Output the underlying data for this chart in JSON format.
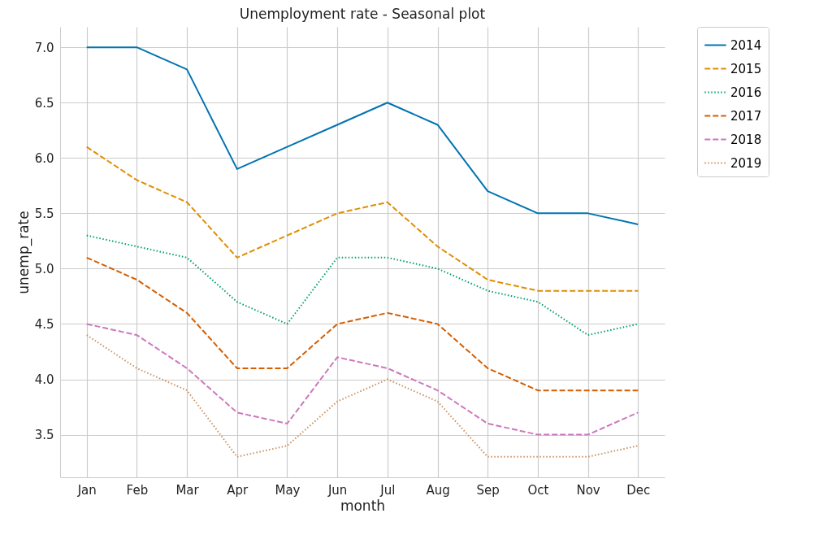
{
  "chart_data": {
    "type": "line",
    "title": "Unemployment rate - Seasonal plot",
    "xlabel": "month",
    "ylabel": "unemp_rate",
    "categories": [
      "Jan",
      "Feb",
      "Mar",
      "Apr",
      "May",
      "Jun",
      "Jul",
      "Aug",
      "Sep",
      "Oct",
      "Nov",
      "Dec"
    ],
    "series": [
      {
        "name": "2014",
        "color": "#0173b2",
        "line_style": "solid",
        "values": [
          7.0,
          7.0,
          6.8,
          5.9,
          6.1,
          6.3,
          6.5,
          6.3,
          5.7,
          5.5,
          5.5,
          5.4
        ]
      },
      {
        "name": "2015",
        "color": "#de8f05",
        "line_style": "dashed",
        "values": [
          6.1,
          5.8,
          5.6,
          5.1,
          5.3,
          5.5,
          5.6,
          5.2,
          4.9,
          4.8,
          4.8,
          4.8
        ]
      },
      {
        "name": "2016",
        "color": "#029e73",
        "line_style": "dotted",
        "values": [
          5.3,
          5.2,
          5.1,
          4.7,
          4.5,
          5.1,
          5.1,
          5.0,
          4.8,
          4.7,
          4.4,
          4.5
        ]
      },
      {
        "name": "2017",
        "color": "#d55e00",
        "line_style": "dashed",
        "values": [
          5.1,
          4.9,
          4.6,
          4.1,
          4.1,
          4.5,
          4.6,
          4.5,
          4.1,
          3.9,
          3.9,
          3.9
        ]
      },
      {
        "name": "2018",
        "color": "#cc78bc",
        "line_style": "dashed",
        "values": [
          4.5,
          4.4,
          4.1,
          3.7,
          3.6,
          4.2,
          4.1,
          3.9,
          3.6,
          3.5,
          3.5,
          3.7
        ]
      },
      {
        "name": "2019",
        "color": "#ca9161",
        "line_style": "dotted",
        "values": [
          4.4,
          4.1,
          3.9,
          3.3,
          3.4,
          3.8,
          4.0,
          3.8,
          3.3,
          3.3,
          3.3,
          3.4
        ]
      }
    ],
    "ylim": [
      3.115,
      7.185
    ],
    "yticks": [
      3.5,
      {
        "value": 4,
        "label": "4.0"
      },
      4.5,
      {
        "value": 5,
        "label": "5.0"
      },
      5.5,
      {
        "value": 6,
        "label": "6.0"
      },
      6.5,
      {
        "value": 7,
        "label": "7.0"
      }
    ],
    "grid": true,
    "legend": "top right",
    "marker": "none"
  }
}
